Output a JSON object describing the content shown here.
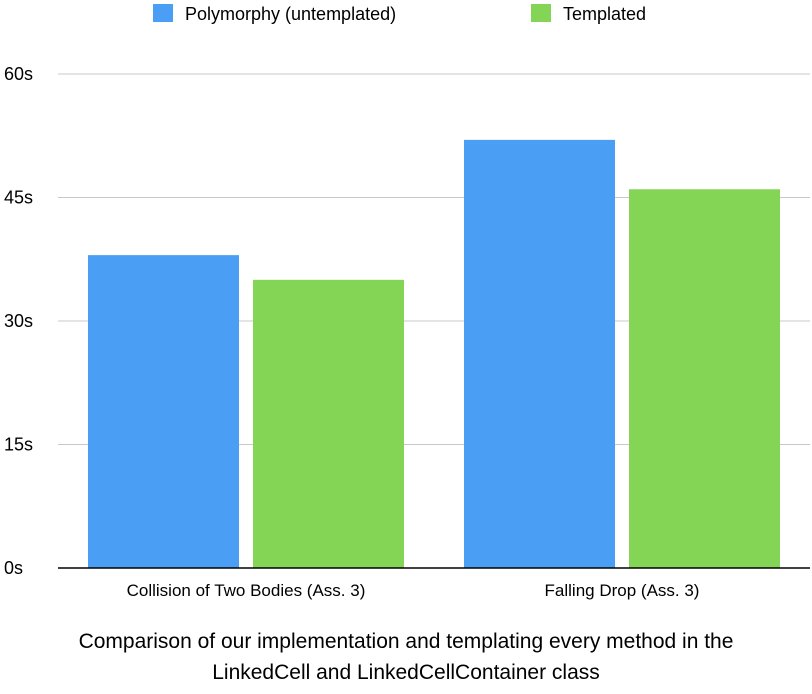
{
  "chart_data": {
    "type": "bar",
    "categories": [
      "Collision of Two Bodies (Ass. 3)",
      "Falling Drop (Ass. 3)"
    ],
    "series": [
      {
        "name": "Polymorphy (untemplated)",
        "values": [
          38,
          52
        ],
        "color": "#4a9ff5"
      },
      {
        "name": "Templated",
        "values": [
          35,
          46
        ],
        "color": "#84d456"
      }
    ],
    "y_ticks": [
      "0s",
      "15s",
      "30s",
      "45s",
      "60s"
    ],
    "y_tick_values": [
      0,
      15,
      30,
      45,
      60
    ],
    "ylim": [
      0,
      60
    ],
    "grid": true,
    "legend_position": "top",
    "title": "",
    "xlabel": "",
    "ylabel": "",
    "caption_lines": [
      "Comparison of our implementation and templating every method in the",
      "LinkedCell and LinkedCellContainer class"
    ]
  }
}
